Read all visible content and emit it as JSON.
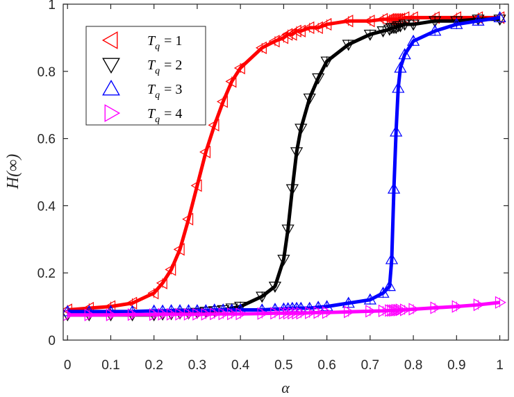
{
  "chart_data": {
    "type": "line",
    "xlabel": "α",
    "ylabel": "H(∞)",
    "xlim": [
      -0.01,
      1.02
    ],
    "ylim": [
      0.0,
      1.0
    ],
    "xticks": [
      0,
      0.1,
      0.2,
      0.3,
      0.4,
      0.5,
      0.6,
      0.7,
      0.8,
      0.9,
      1
    ],
    "xtick_labels": [
      "0",
      "0.1",
      "0.2",
      "0.3",
      "0.4",
      "0.5",
      "0.6",
      "0.7",
      "0.8",
      "0.9",
      "1"
    ],
    "yticks": [
      0,
      0.2,
      0.4,
      0.6,
      0.8,
      1
    ],
    "ytick_labels": [
      "0",
      "0.2",
      "0.4",
      "0.6",
      "0.8",
      "1"
    ],
    "grid": false,
    "legend_position": "top-left",
    "x": [
      0,
      0.05,
      0.1,
      0.15,
      0.2,
      0.22,
      0.24,
      0.26,
      0.28,
      0.3,
      0.32,
      0.34,
      0.36,
      0.38,
      0.4,
      0.45,
      0.48,
      0.5,
      0.51,
      0.52,
      0.53,
      0.54,
      0.56,
      0.58,
      0.6,
      0.65,
      0.7,
      0.73,
      0.745,
      0.75,
      0.755,
      0.76,
      0.765,
      0.77,
      0.78,
      0.8,
      0.85,
      0.9,
      0.95,
      1.0
    ],
    "series": [
      {
        "name": "T_q = 1",
        "legend_label": "T",
        "legend_sub": "q",
        "legend_value": "= 1",
        "color": "#ff0000",
        "marker": "triangle-left",
        "values": [
          0.09,
          0.095,
          0.1,
          0.11,
          0.14,
          0.17,
          0.21,
          0.27,
          0.36,
          0.46,
          0.56,
          0.64,
          0.71,
          0.77,
          0.81,
          0.87,
          0.89,
          0.9,
          0.91,
          0.91,
          0.92,
          0.92,
          0.93,
          0.93,
          0.94,
          0.95,
          0.95,
          0.955,
          0.955,
          0.955,
          0.955,
          0.955,
          0.955,
          0.955,
          0.96,
          0.96,
          0.96,
          0.96,
          0.96,
          0.96
        ]
      },
      {
        "name": "T_q = 2",
        "legend_label": "T",
        "legend_sub": "q",
        "legend_value": "= 2",
        "color": "#000000",
        "marker": "triangle-down",
        "values": [
          0.075,
          0.075,
          0.075,
          0.075,
          0.075,
          0.077,
          0.078,
          0.08,
          0.08,
          0.082,
          0.085,
          0.087,
          0.09,
          0.095,
          0.1,
          0.13,
          0.16,
          0.24,
          0.33,
          0.45,
          0.56,
          0.63,
          0.72,
          0.78,
          0.83,
          0.88,
          0.91,
          0.92,
          0.925,
          0.93,
          0.93,
          0.93,
          0.935,
          0.935,
          0.94,
          0.94,
          0.95,
          0.95,
          0.955,
          0.955
        ]
      },
      {
        "name": "T_q = 3",
        "legend_label": "T",
        "legend_sub": "q",
        "legend_value": "= 3",
        "color": "#0000ff",
        "marker": "triangle-up",
        "values": [
          0.085,
          0.085,
          0.085,
          0.085,
          0.087,
          0.087,
          0.088,
          0.088,
          0.088,
          0.088,
          0.088,
          0.09,
          0.09,
          0.09,
          0.09,
          0.09,
          0.092,
          0.093,
          0.094,
          0.095,
          0.095,
          0.095,
          0.095,
          0.098,
          0.1,
          0.11,
          0.12,
          0.14,
          0.16,
          0.24,
          0.45,
          0.62,
          0.75,
          0.81,
          0.85,
          0.89,
          0.92,
          0.94,
          0.95,
          0.96
        ]
      },
      {
        "name": "T_q = 4",
        "legend_label": "T",
        "legend_sub": "q",
        "legend_value": "= 4",
        "color": "#ff00ff",
        "marker": "triangle-right",
        "values": [
          0.075,
          0.075,
          0.075,
          0.076,
          0.076,
          0.077,
          0.077,
          0.077,
          0.077,
          0.077,
          0.077,
          0.078,
          0.078,
          0.078,
          0.078,
          0.079,
          0.08,
          0.08,
          0.08,
          0.08,
          0.08,
          0.08,
          0.081,
          0.082,
          0.082,
          0.084,
          0.086,
          0.087,
          0.088,
          0.088,
          0.088,
          0.089,
          0.089,
          0.09,
          0.09,
          0.092,
          0.096,
          0.1,
          0.105,
          0.112
        ]
      }
    ]
  }
}
